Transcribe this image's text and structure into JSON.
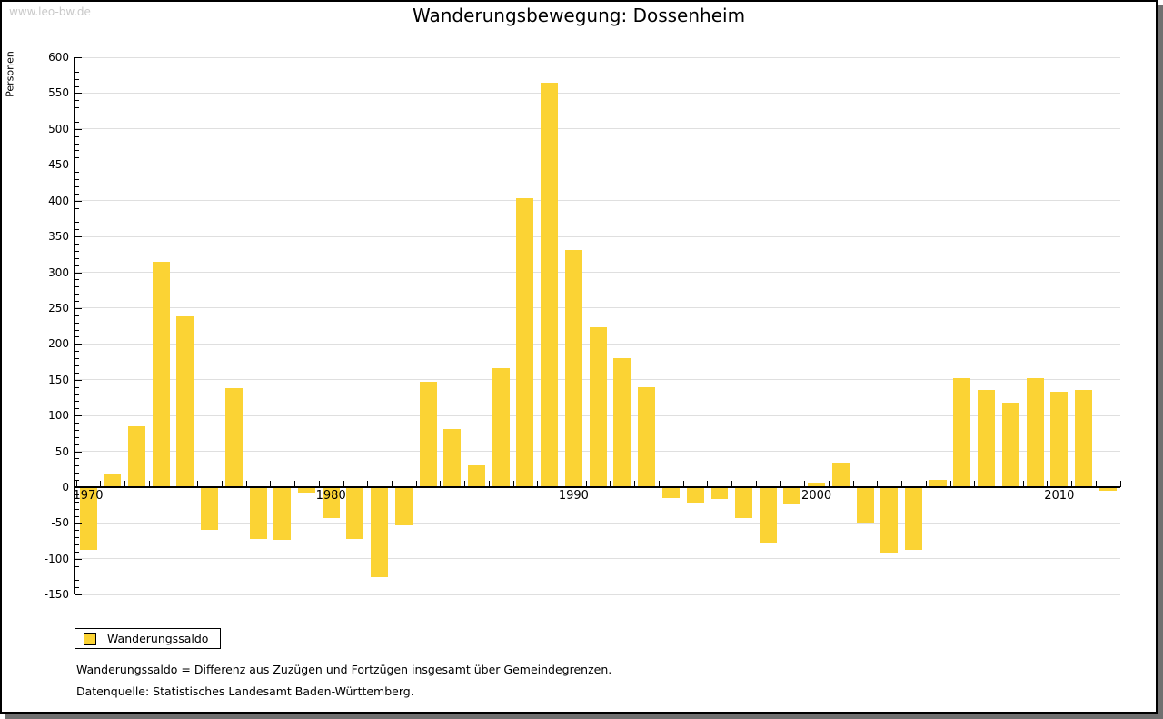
{
  "watermark": "www.leo-bw.de",
  "title": "Wanderungsbewegung: Dossenheim",
  "y_axis_title": "Personen",
  "legend": {
    "label": "Wanderungssaldo"
  },
  "footnotes": [
    "Wanderungssaldo = Differenz aus Zuzügen und Fortzügen insgesamt über Gemeindegrenzen.",
    "Datenquelle: Statistisches Landesamt Baden-Württemberg."
  ],
  "colors": {
    "bar": "#fbd334",
    "grid": "#dfdfdf",
    "axis": "#000000",
    "watermark": "#c9c9c9",
    "frame_shadow": "#707070"
  },
  "chart_data": {
    "type": "bar",
    "title": "Wanderungsbewegung: Dossenheim",
    "xlabel": "",
    "ylabel": "Personen",
    "series_name": "Wanderungssaldo",
    "years": [
      1970,
      1971,
      1972,
      1973,
      1974,
      1975,
      1976,
      1977,
      1978,
      1979,
      1980,
      1981,
      1982,
      1983,
      1984,
      1985,
      1986,
      1987,
      1988,
      1989,
      1990,
      1991,
      1992,
      1993,
      1994,
      1995,
      1996,
      1997,
      1998,
      1999,
      2000,
      2001,
      2002,
      2003,
      2004,
      2005,
      2006,
      2007,
      2008,
      2009,
      2010,
      2011,
      2012
    ],
    "values": [
      -88,
      18,
      85,
      315,
      238,
      -59,
      138,
      -72,
      -74,
      -8,
      -43,
      -72,
      -126,
      -53,
      147,
      81,
      31,
      166,
      403,
      564,
      331,
      223,
      180,
      140,
      -15,
      -21,
      -16,
      -43,
      -77,
      -23,
      6,
      34,
      -49,
      -91,
      -87,
      10,
      152,
      136,
      118,
      152,
      133,
      136,
      -5
    ],
    "ylim": [
      -150,
      600
    ],
    "ytick_step": 50,
    "ytick_minor_step": 10,
    "ytick_labels": [
      "600",
      "550",
      "500",
      "450",
      "400",
      "350",
      "300",
      "250",
      "200",
      "150",
      "100",
      "50",
      "0",
      "-50",
      "-100",
      "-150"
    ],
    "x_labeled_years": [
      1970,
      1980,
      1990,
      2000,
      2010
    ],
    "grid": true,
    "bar_color": "#fbd334",
    "legend_position": "bottom-left"
  }
}
